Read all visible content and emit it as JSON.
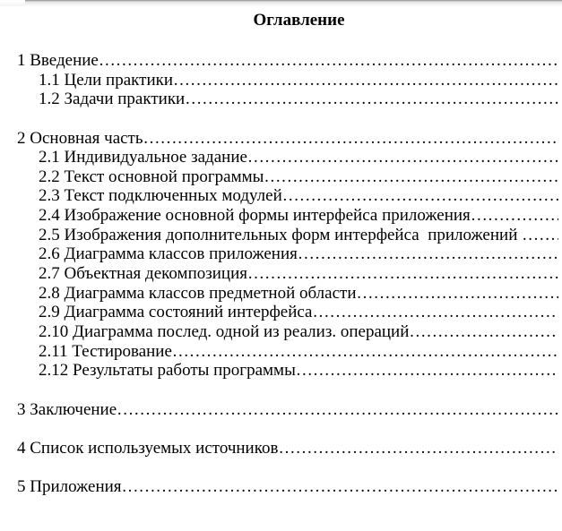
{
  "document": {
    "title": "Оглавление",
    "leader_char": "…",
    "colors": {
      "text": "#000000",
      "background": "#ffffff"
    },
    "toc_groups": [
      {
        "entries": [
          {
            "label": "1 Введение",
            "level": 1
          },
          {
            "label": "1.1 Цели практики",
            "level": 2
          },
          {
            "label": "1.2 Задачи практики",
            "level": 2
          }
        ]
      },
      {
        "entries": [
          {
            "label": "2 Основная часть",
            "level": 1
          },
          {
            "label": "2.1 Индивидуальное задание",
            "level": 2
          },
          {
            "label": "2.2 Текст основной программы",
            "level": 2
          },
          {
            "label": "2.3 Текст подключенных модулей",
            "level": 2
          },
          {
            "label": "2.4 Изображение основной формы интерфейса приложения",
            "level": 2
          },
          {
            "label": "2.5 Изображения дополнительных форм интерфейса  приложений ",
            "level": 2
          },
          {
            "label": "2.6 Диаграмма классов приложения",
            "level": 2
          },
          {
            "label": "2.7 Объектная декомпозиция",
            "level": 2
          },
          {
            "label": "2.8 Диаграмма классов предметной области",
            "level": 2
          },
          {
            "label": "2.9 Диаграмма состояний интерфейса",
            "level": 2
          },
          {
            "label": "2.10 Диаграмма послед. одной из реализ. операций",
            "level": 2
          },
          {
            "label": "2.11 Тестирование",
            "level": 2
          },
          {
            "label": "2.12 Результаты работы программы",
            "level": 2
          }
        ]
      },
      {
        "entries": [
          {
            "label": "3 Заключение",
            "level": 1
          }
        ]
      },
      {
        "entries": [
          {
            "label": "4 Список используемых источников",
            "level": 1
          }
        ]
      },
      {
        "entries": [
          {
            "label": "5 Приложения",
            "level": 1
          }
        ]
      }
    ]
  }
}
